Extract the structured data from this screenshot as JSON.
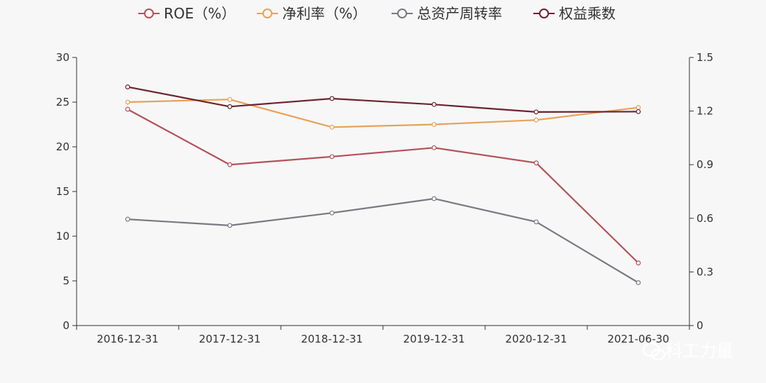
{
  "chart_data": {
    "type": "line",
    "categories": [
      "2016-12-31",
      "2017-12-31",
      "2018-12-31",
      "2019-12-31",
      "2020-12-31",
      "2021-06-30"
    ],
    "y_left": {
      "ylim": [
        0,
        30
      ],
      "ticks": [
        0,
        5,
        10,
        15,
        20,
        25,
        30
      ]
    },
    "y_right": {
      "ylim": [
        0,
        1.5
      ],
      "ticks": [
        "0",
        "0.3",
        "0.6",
        "0.9",
        "1.2",
        "1.5"
      ]
    },
    "grid": false,
    "legend_position": "top-center",
    "series": [
      {
        "name": "ROE（%）",
        "axis": "left",
        "color": "#b5525a",
        "values": [
          24.2,
          18.0,
          18.9,
          19.9,
          18.2,
          7.0
        ]
      },
      {
        "name": "净利率（%）",
        "axis": "left",
        "color": "#e8a25a",
        "values": [
          25.0,
          25.3,
          22.2,
          22.5,
          23.0,
          24.4
        ]
      },
      {
        "name": "总资产周转率",
        "axis": "right",
        "color": "#7a7a82",
        "values": [
          0.595,
          0.56,
          0.63,
          0.71,
          0.58,
          0.24
        ]
      },
      {
        "name": "权益乘数",
        "axis": "right",
        "color": "#6b2430",
        "values": [
          1.335,
          1.225,
          1.27,
          1.237,
          1.195,
          1.197
        ]
      }
    ]
  },
  "watermark": {
    "text": "科工力量",
    "icon": "wechat-icon"
  }
}
